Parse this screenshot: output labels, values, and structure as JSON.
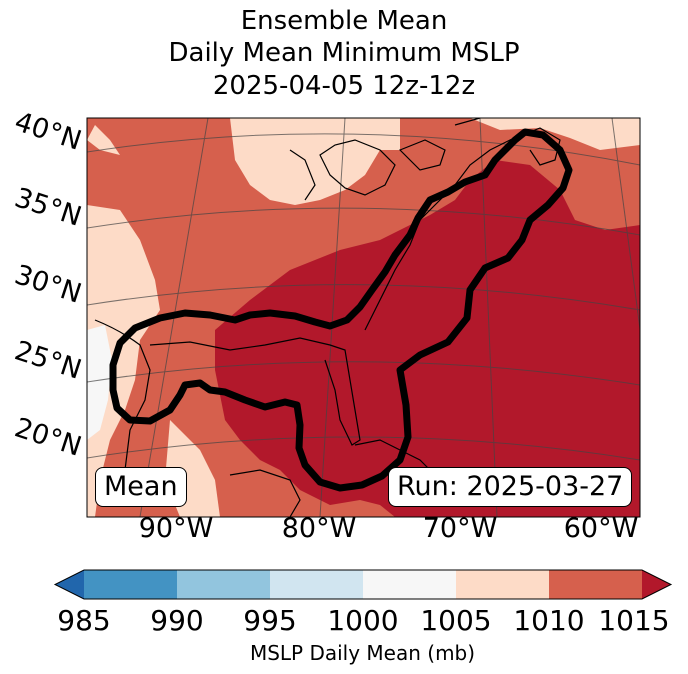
{
  "title": {
    "line1": "Ensemble Mean",
    "line2": "Daily Mean Minimum MSLP",
    "line3": "2025-04-05 12z-12z"
  },
  "map": {
    "lat_labels": [
      "40°N",
      "35°N",
      "30°N",
      "25°N",
      "20°N"
    ],
    "lon_labels": [
      "90°W",
      "80°W",
      "70°W",
      "60°W"
    ],
    "left_box": "Mean",
    "right_box": "Run: 2025-03-27"
  },
  "colorbar": {
    "label": "MSLP Daily Mean (mb)",
    "ticks": [
      "985",
      "990",
      "995",
      "1000",
      "1005",
      "1010",
      "1015"
    ],
    "colors": [
      "#2166ac",
      "#4393c3",
      "#92c5de",
      "#d1e5f0",
      "#f7f7f7",
      "#fddbc7",
      "#d6604d",
      "#b2182b"
    ]
  }
}
